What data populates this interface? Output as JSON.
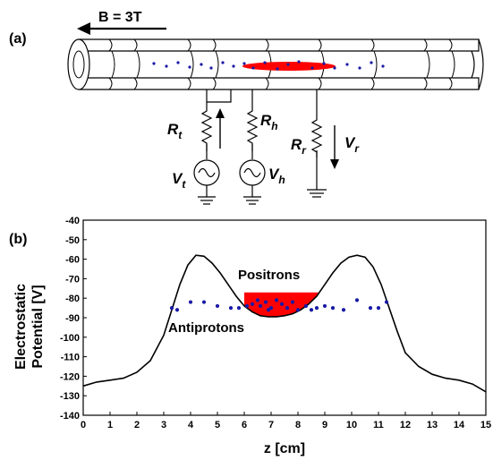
{
  "panel_a": {
    "label": "(a)",
    "field_label": "B = 3T",
    "resistors": [
      {
        "id": "t",
        "symbol": "R",
        "sub": "t"
      },
      {
        "id": "h",
        "symbol": "R",
        "sub": "h"
      },
      {
        "id": "r",
        "symbol": "R",
        "sub": "r"
      }
    ],
    "sources": [
      {
        "id": "t",
        "symbol": "V",
        "sub": "t"
      },
      {
        "id": "h",
        "symbol": "V",
        "sub": "h"
      }
    ],
    "readout": {
      "symbol": "V",
      "sub": "r"
    }
  },
  "panel_b": {
    "label": "(b)",
    "positrons_label": "Positrons",
    "antiprotons_label": "Antiprotons"
  },
  "colors": {
    "positron": "#ff0000",
    "antiproton": "#1a1aa6",
    "line": "#000000"
  },
  "chart_data": {
    "type": "line",
    "xlabel": "z [cm]",
    "ylabel": [
      "Electrostatic",
      "Potential [V]"
    ],
    "xlim": [
      0,
      15
    ],
    "ylim": [
      -140,
      -40
    ],
    "xticks": [
      0,
      1,
      2,
      3,
      4,
      5,
      6,
      7,
      8,
      9,
      10,
      11,
      12,
      13,
      14,
      15
    ],
    "yticks": [
      -40,
      -50,
      -60,
      -70,
      -80,
      -90,
      -100,
      -110,
      -120,
      -130,
      -140
    ],
    "grid": false,
    "series": [
      {
        "x": [
          0,
          0.5,
          1,
          1.5,
          2,
          2.5,
          3,
          3.3,
          3.6,
          3.9,
          4.2,
          4.5,
          4.8,
          5.1,
          5.4,
          5.7,
          6,
          6.3,
          6.6,
          6.9,
          7.2,
          7.5,
          7.8,
          8.1,
          8.4,
          8.7,
          9,
          9.3,
          9.6,
          9.9,
          10.2,
          10.5,
          10.8,
          11.1,
          11.4,
          11.7,
          12,
          12.5,
          13,
          13.5,
          14,
          14.5,
          15
        ],
        "y": [
          -125,
          -123,
          -122,
          -121,
          -118,
          -112,
          -99,
          -86,
          -73,
          -63,
          -58,
          -58.5,
          -62,
          -67,
          -73,
          -79,
          -84,
          -87,
          -89,
          -89.5,
          -89.5,
          -89,
          -88,
          -86,
          -83,
          -79,
          -73,
          -67,
          -62,
          -59,
          -58,
          -59,
          -64,
          -73,
          -85,
          -97,
          -108,
          -115,
          -119,
          -121,
          -122,
          -124,
          -128
        ]
      }
    ],
    "positron_region": {
      "x_start": 6.0,
      "x_end": 8.8,
      "top_y": -77
    },
    "antiproton_points": {
      "x": [
        3.3,
        3.5,
        4.0,
        4.5,
        5.0,
        5.5,
        5.8,
        6.1,
        6.3,
        6.5,
        6.6,
        6.8,
        6.9,
        7.0,
        7.2,
        7.4,
        7.6,
        7.8,
        8.0,
        8.3,
        8.5,
        8.7,
        9.0,
        9.3,
        9.7,
        10.2,
        10.7,
        11.0,
        11.3
      ],
      "y": [
        -85,
        -86,
        -82,
        -82,
        -84,
        -85,
        -85,
        -84,
        -83,
        -81,
        -84,
        -82,
        -86,
        -85,
        -81,
        -83,
        -85,
        -82,
        -86,
        -84,
        -86,
        -85,
        -84,
        -85,
        -86,
        -81,
        -85,
        -85,
        -82
      ]
    }
  }
}
